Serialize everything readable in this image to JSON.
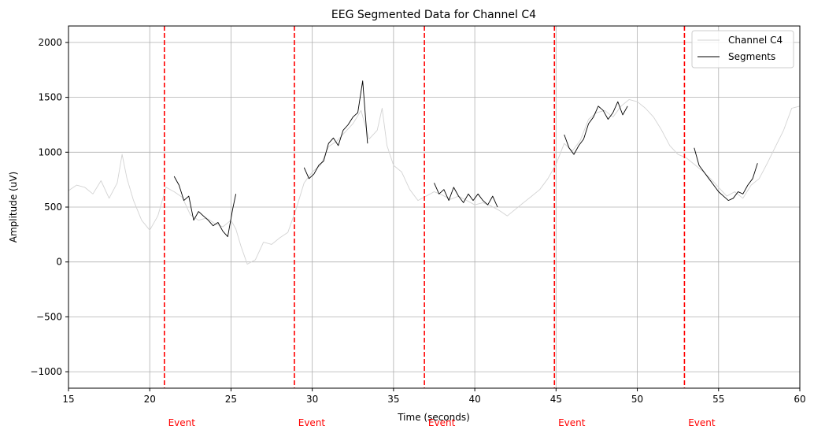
{
  "chart_data": {
    "type": "line",
    "title": "EEG Segmented Data for Channel  C4",
    "xlabel": "Time (seconds)",
    "ylabel": "Amplitude (uV)",
    "xlim": [
      15,
      60
    ],
    "ylim": [
      -1150,
      2150
    ],
    "xticks": [
      15,
      20,
      25,
      30,
      35,
      40,
      45,
      50,
      55,
      60
    ],
    "yticks": [
      -1000,
      -500,
      0,
      500,
      1000,
      1500,
      2000
    ],
    "grid": true,
    "legend_placement": "top-right",
    "event_color": "#ff0000",
    "series": [
      {
        "name": "Channel C4",
        "color": "#d3d3d3",
        "x": [
          15,
          15.5,
          16,
          16.5,
          17,
          17.5,
          18,
          18.3,
          18.6,
          19,
          19.5,
          20,
          20.5,
          21,
          21.5,
          22,
          22.5,
          23,
          23.5,
          24,
          24.5,
          25,
          25.3,
          25.6,
          26,
          26.5,
          27,
          27.5,
          28,
          28.5,
          29,
          29.5,
          30,
          30.5,
          31,
          31.5,
          32,
          32.5,
          33,
          33.5,
          34,
          34.3,
          34.6,
          35,
          35.5,
          36,
          36.5,
          37,
          37.5,
          38,
          38.5,
          39,
          39.5,
          40,
          40.5,
          41,
          41.5,
          42,
          42.5,
          43,
          43.5,
          44,
          44.5,
          45,
          45.5,
          46,
          46.5,
          47,
          47.5,
          48,
          48.5,
          49,
          49.5,
          50,
          50.5,
          51,
          51.5,
          52,
          52.5,
          53,
          53.5,
          54,
          54.5,
          55,
          55.5,
          56,
          56.5,
          57,
          57.5,
          58,
          58.5,
          59,
          59.5,
          60
        ],
        "y": [
          650,
          700,
          680,
          620,
          740,
          580,
          720,
          980,
          760,
          560,
          380,
          290,
          420,
          680,
          640,
          590,
          430,
          380,
          400,
          350,
          320,
          380,
          300,
          150,
          -20,
          20,
          180,
          160,
          220,
          270,
          480,
          720,
          820,
          880,
          1050,
          1100,
          1180,
          1260,
          1380,
          1120,
          1200,
          1400,
          1060,
          880,
          820,
          660,
          560,
          600,
          640,
          610,
          570,
          600,
          560,
          520,
          540,
          510,
          470,
          420,
          480,
          540,
          600,
          660,
          760,
          890,
          1080,
          1010,
          1110,
          1300,
          1360,
          1380,
          1320,
          1420,
          1480,
          1460,
          1400,
          1320,
          1200,
          1060,
          980,
          950,
          890,
          830,
          760,
          680,
          600,
          640,
          580,
          700,
          760,
          900,
          1050,
          1200,
          1400,
          1420
        ]
      },
      {
        "name": "Segments",
        "color": "#000000",
        "segments": [
          {
            "x": [
              21.5,
              21.8,
              22.1,
              22.4,
              22.7,
              23.0,
              23.3,
              23.6,
              23.9,
              24.2,
              24.5,
              24.8,
              25.1,
              25.3
            ],
            "y": [
              780,
              700,
              560,
              600,
              380,
              460,
              420,
              380,
              330,
              360,
              280,
              230,
              480,
              620
            ]
          },
          {
            "x": [
              29.5,
              29.8,
              30.1,
              30.4,
              30.7,
              31.0,
              31.3,
              31.6,
              31.9,
              32.2,
              32.5,
              32.8,
              33.1,
              33.4
            ],
            "y": [
              860,
              760,
              800,
              880,
              920,
              1080,
              1130,
              1060,
              1200,
              1250,
              1320,
              1360,
              1650,
              1080
            ]
          },
          {
            "x": [
              37.5,
              37.8,
              38.1,
              38.4,
              38.7,
              39.0,
              39.3,
              39.6,
              39.9,
              40.2,
              40.5,
              40.8,
              41.1,
              41.4
            ],
            "y": [
              720,
              620,
              660,
              560,
              680,
              600,
              540,
              620,
              560,
              620,
              560,
              520,
              600,
              500
            ]
          },
          {
            "x": [
              45.5,
              45.8,
              46.1,
              46.4,
              46.7,
              47.0,
              47.3,
              47.6,
              47.9,
              48.2,
              48.5,
              48.8,
              49.1,
              49.4
            ],
            "y": [
              1160,
              1040,
              980,
              1060,
              1120,
              1260,
              1320,
              1420,
              1380,
              1300,
              1360,
              1460,
              1340,
              1420
            ]
          },
          {
            "x": [
              53.5,
              53.8,
              54.1,
              54.4,
              54.7,
              55.0,
              55.3,
              55.6,
              55.9,
              56.2,
              56.5,
              56.8,
              57.1,
              57.4
            ],
            "y": [
              1040,
              880,
              820,
              760,
              700,
              640,
              600,
              560,
              580,
              640,
              620,
              700,
              760,
              900
            ]
          }
        ]
      }
    ],
    "events": [
      {
        "x": 20.9,
        "label": "Event"
      },
      {
        "x": 28.9,
        "label": "Event"
      },
      {
        "x": 36.9,
        "label": "Event"
      },
      {
        "x": 44.9,
        "label": "Event"
      },
      {
        "x": 52.9,
        "label": "Event"
      }
    ]
  }
}
